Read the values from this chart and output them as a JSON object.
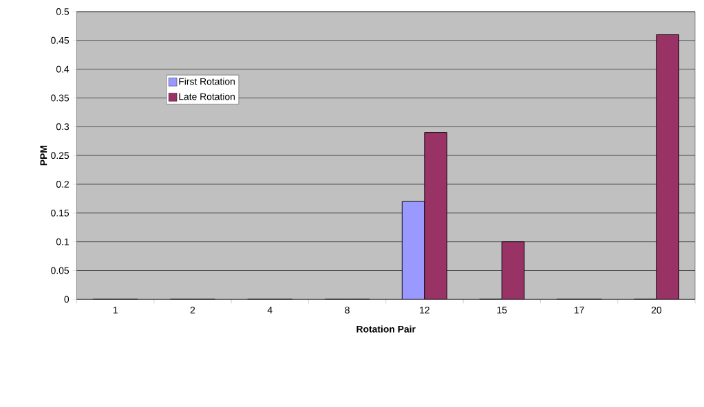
{
  "chart_data": {
    "type": "bar",
    "xlabel": "Rotation Pair",
    "ylabel": "PPM",
    "categories": [
      "1",
      "2",
      "4",
      "8",
      "12",
      "15",
      "17",
      "20"
    ],
    "series": [
      {
        "name": "First Rotation",
        "color": "#9999ff",
        "values": [
          0,
          0,
          0,
          0,
          0.17,
          0,
          0,
          0
        ]
      },
      {
        "name": "Late Rotation",
        "color": "#993366",
        "values": [
          0,
          0,
          0,
          0,
          0.29,
          0.1,
          0,
          0.46
        ]
      }
    ],
    "ylim": [
      0,
      0.5
    ],
    "yticks": [
      0,
      0.05,
      0.1,
      0.15,
      0.2,
      0.25,
      0.3,
      0.35,
      0.4,
      0.45,
      0.5
    ],
    "grid": "y",
    "legend": "top left"
  }
}
